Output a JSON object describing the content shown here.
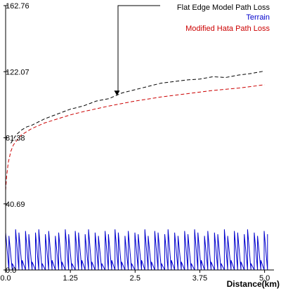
{
  "chart_data": {
    "type": "line",
    "xlabel": "Distance(km)",
    "ylabel": "",
    "title": "",
    "xlim": [
      0,
      5.1
    ],
    "ylim": [
      0,
      162.76
    ],
    "x_ticks": [
      "0.0",
      "1.25",
      "2.5",
      "3.75",
      "5.0"
    ],
    "x_tick_values": [
      0,
      1.25,
      2.5,
      3.75,
      5.0
    ],
    "y_ticks": [
      "0.0",
      "40.69",
      "81.38",
      "122.07",
      "162.76"
    ],
    "y_tick_values": [
      0,
      40.69,
      81.38,
      122.07,
      162.76
    ],
    "grid": false,
    "legend_placement": "top-right",
    "series": [
      {
        "name": "Flat Edge Model  Path Loss",
        "color": "#000000",
        "style": "dashed",
        "x": [
          0.1,
          0.2,
          0.3,
          0.4,
          0.5,
          0.75,
          1.0,
          1.25,
          1.5,
          1.75,
          2.0,
          2.1,
          2.25,
          2.5,
          2.75,
          3.0,
          3.25,
          3.5,
          3.75,
          4.0,
          4.25,
          4.5,
          4.75,
          5.0
        ],
        "values": [
          78,
          83,
          86,
          88,
          89,
          93,
          96,
          99,
          101,
          104,
          105.5,
          107,
          109,
          111,
          113,
          115,
          116,
          117,
          117.5,
          119,
          118.5,
          120,
          121,
          122.5
        ]
      },
      {
        "name": "Terrain",
        "color": "#0000cc",
        "style": "solid",
        "x_step": 0.064,
        "values": [
          23,
          21,
          4,
          25,
          23,
          6,
          24,
          22,
          5,
          23,
          25,
          4,
          22,
          24,
          6,
          21,
          23,
          5,
          25,
          22,
          4,
          24,
          23,
          6,
          22,
          25,
          5,
          23,
          21,
          4,
          24,
          22,
          6,
          25,
          23,
          5,
          21,
          24,
          4,
          23,
          22,
          6,
          25,
          21,
          5,
          24,
          23,
          4,
          22,
          25,
          6,
          23,
          21,
          5,
          24,
          22,
          4,
          25,
          23,
          6,
          21,
          24,
          5,
          23,
          22,
          4,
          25,
          21,
          6,
          24,
          23,
          5,
          22,
          25,
          4,
          23,
          21,
          6,
          24,
          22
        ]
      },
      {
        "name": "Modified Hata  Path Loss",
        "color": "#cc0000",
        "style": "dashed",
        "x": [
          0.0,
          0.02,
          0.05,
          0.1,
          0.15,
          0.2,
          0.3,
          0.4,
          0.5,
          0.75,
          1.0,
          1.25,
          1.5,
          2.0,
          2.5,
          3.0,
          3.5,
          4.0,
          4.5,
          5.0
        ],
        "values": [
          49,
          58,
          66,
          73,
          77,
          79,
          83,
          85,
          87,
          90.5,
          93,
          95.5,
          97.5,
          101,
          104,
          106.5,
          108.5,
          110.5,
          112,
          114
        ]
      }
    ],
    "annotations": []
  }
}
